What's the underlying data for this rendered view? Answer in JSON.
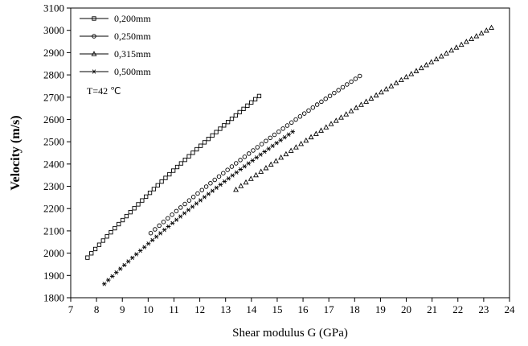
{
  "chart_data": {
    "type": "scatter",
    "xlabel": "Shear modulus G (GPa)",
    "ylabel": "Velocity (m/s)",
    "xlim": [
      7,
      24
    ],
    "ylim": [
      1800,
      3100
    ],
    "xticks": [
      "7",
      "8",
      "9",
      "10",
      "11",
      "12",
      "13",
      "14",
      "15",
      "16",
      "17",
      "18",
      "19",
      "20",
      "21",
      "22",
      "23",
      "24"
    ],
    "yticks": [
      "1800",
      "1900",
      "2000",
      "2100",
      "2200",
      "2300",
      "2400",
      "2500",
      "2600",
      "2700",
      "2800",
      "2900",
      "3000",
      "3100"
    ],
    "grid": false,
    "legend_position": "top-left",
    "annotation": "T=42 ℃",
    "series": [
      {
        "name": "0,200mm",
        "marker": "square",
        "x_start": 7.65,
        "x_end": 14.3,
        "y_start": 1980,
        "y_end": 2705,
        "count": 45
      },
      {
        "name": "0,250mm",
        "marker": "circle",
        "x_start": 10.1,
        "x_end": 18.2,
        "y_start": 2090,
        "y_end": 2795,
        "count": 50
      },
      {
        "name": "0,315mm",
        "marker": "triangle",
        "x_start": 13.4,
        "x_end": 23.3,
        "y_start": 2285,
        "y_end": 3012,
        "count": 52
      },
      {
        "name": "0,500mm",
        "marker": "star",
        "x_start": 8.3,
        "x_end": 15.6,
        "y_start": 1862,
        "y_end": 2545,
        "count": 48
      }
    ]
  }
}
